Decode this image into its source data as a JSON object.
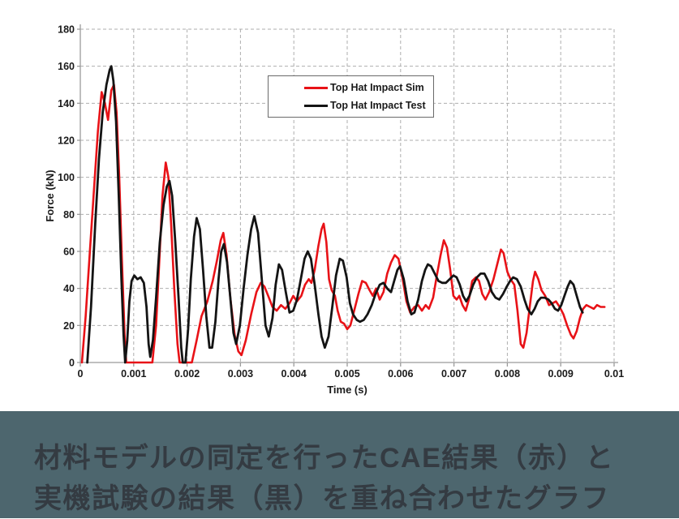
{
  "page": {
    "background": "#ffffff"
  },
  "chart_data": {
    "type": "line",
    "title": "",
    "xlabel": "Time (s)",
    "ylabel": "Force (kN)",
    "xlim": [
      0,
      0.01
    ],
    "ylim": [
      0,
      180
    ],
    "x_ticks": {
      "values": [
        0,
        0.001,
        0.002,
        0.003,
        0.004,
        0.005,
        0.006,
        0.007,
        0.008,
        0.009,
        0.01
      ],
      "labels": [
        "0",
        "0.001",
        "0.002",
        "0.003",
        "0.004",
        "0.005",
        "0.006",
        "0.007",
        "0.008",
        "0.009",
        "0.01"
      ]
    },
    "y_ticks": {
      "values": [
        0,
        20,
        40,
        60,
        80,
        100,
        120,
        140,
        160,
        180
      ],
      "labels": [
        "0",
        "20",
        "40",
        "60",
        "80",
        "100",
        "120",
        "140",
        "160",
        "180"
      ]
    },
    "grid": {
      "style": "dashed",
      "color": "#aeaeae",
      "dash": "4 3"
    },
    "axis_color": "#9b9b9b",
    "tick_label_color": "#1a1a1a",
    "legend": {
      "position": "upper-center",
      "border_color": "#6a6a6a",
      "background": "#ffffff"
    },
    "series": [
      {
        "name": "Top Hat Impact Sim",
        "color": "#e81217",
        "stroke_width": 2.6,
        "points": [
          [
            3e-05,
            0
          ],
          [
            0.0001,
            25
          ],
          [
            0.00018,
            60
          ],
          [
            0.00026,
            95
          ],
          [
            0.00033,
            125
          ],
          [
            0.0004,
            146
          ],
          [
            0.00046,
            140
          ],
          [
            0.00052,
            131
          ],
          [
            0.00058,
            147
          ],
          [
            0.00063,
            150
          ],
          [
            0.00068,
            135
          ],
          [
            0.00073,
            100
          ],
          [
            0.00078,
            55
          ],
          [
            0.00083,
            15
          ],
          [
            0.00086,
            0
          ],
          [
            0.001,
            0
          ],
          [
            0.0012,
            0
          ],
          [
            0.00135,
            0
          ],
          [
            0.00142,
            20
          ],
          [
            0.00148,
            55
          ],
          [
            0.00154,
            90
          ],
          [
            0.0016,
            108
          ],
          [
            0.00165,
            100
          ],
          [
            0.0017,
            75
          ],
          [
            0.00176,
            40
          ],
          [
            0.00182,
            10
          ],
          [
            0.00186,
            0
          ],
          [
            0.002,
            0
          ],
          [
            0.00209,
            0
          ],
          [
            0.00218,
            12
          ],
          [
            0.00227,
            25
          ],
          [
            0.00238,
            33
          ],
          [
            0.00248,
            44
          ],
          [
            0.00256,
            55
          ],
          [
            0.00263,
            66
          ],
          [
            0.00268,
            70
          ],
          [
            0.00274,
            58
          ],
          [
            0.00281,
            35
          ],
          [
            0.00289,
            15
          ],
          [
            0.00296,
            6
          ],
          [
            0.00302,
            4
          ],
          [
            0.0031,
            12
          ],
          [
            0.0032,
            26
          ],
          [
            0.0033,
            38
          ],
          [
            0.00338,
            43
          ],
          [
            0.00345,
            41
          ],
          [
            0.00352,
            36
          ],
          [
            0.0036,
            30
          ],
          [
            0.00368,
            28
          ],
          [
            0.00376,
            31
          ],
          [
            0.00384,
            29
          ],
          [
            0.00392,
            32
          ],
          [
            0.00399,
            36
          ],
          [
            0.00406,
            33
          ],
          [
            0.00414,
            36
          ],
          [
            0.00421,
            42
          ],
          [
            0.00428,
            45
          ],
          [
            0.00433,
            43
          ],
          [
            0.00439,
            50
          ],
          [
            0.00446,
            63
          ],
          [
            0.00452,
            72
          ],
          [
            0.00456,
            75
          ],
          [
            0.00461,
            65
          ],
          [
            0.00466,
            45
          ],
          [
            0.00471,
            39
          ],
          [
            0.00477,
            36
          ],
          [
            0.00482,
            28
          ],
          [
            0.00488,
            22
          ],
          [
            0.00494,
            21
          ],
          [
            0.005,
            18
          ],
          [
            0.00506,
            20
          ],
          [
            0.00513,
            28
          ],
          [
            0.00521,
            37
          ],
          [
            0.00528,
            44
          ],
          [
            0.00535,
            43
          ],
          [
            0.00542,
            39
          ],
          [
            0.00548,
            36
          ],
          [
            0.00554,
            40
          ],
          [
            0.00561,
            34
          ],
          [
            0.00568,
            38
          ],
          [
            0.00575,
            48
          ],
          [
            0.00582,
            54
          ],
          [
            0.00589,
            58
          ],
          [
            0.00596,
            56
          ],
          [
            0.00604,
            45
          ],
          [
            0.00611,
            33
          ],
          [
            0.00618,
            27
          ],
          [
            0.00626,
            30
          ],
          [
            0.00633,
            31
          ],
          [
            0.0064,
            28
          ],
          [
            0.00647,
            31
          ],
          [
            0.00653,
            29
          ],
          [
            0.00661,
            35
          ],
          [
            0.00668,
            47
          ],
          [
            0.00675,
            58
          ],
          [
            0.00681,
            66
          ],
          [
            0.00687,
            62
          ],
          [
            0.00693,
            50
          ],
          [
            0.00699,
            36
          ],
          [
            0.00705,
            34
          ],
          [
            0.0071,
            36
          ],
          [
            0.00716,
            31
          ],
          [
            0.00722,
            28
          ],
          [
            0.00728,
            34
          ],
          [
            0.00734,
            44
          ],
          [
            0.00741,
            46
          ],
          [
            0.00747,
            44
          ],
          [
            0.00753,
            37
          ],
          [
            0.00759,
            34
          ],
          [
            0.00766,
            38
          ],
          [
            0.00774,
            45
          ],
          [
            0.00781,
            53
          ],
          [
            0.00788,
            61
          ],
          [
            0.00793,
            59
          ],
          [
            0.008,
            49
          ],
          [
            0.00806,
            45
          ],
          [
            0.00813,
            42
          ],
          [
            0.00819,
            28
          ],
          [
            0.00825,
            10
          ],
          [
            0.0083,
            8
          ],
          [
            0.00836,
            16
          ],
          [
            0.00842,
            30
          ],
          [
            0.00848,
            44
          ],
          [
            0.00852,
            49
          ],
          [
            0.00858,
            45
          ],
          [
            0.00864,
            39
          ],
          [
            0.00871,
            36
          ],
          [
            0.00878,
            31
          ],
          [
            0.00885,
            32
          ],
          [
            0.00891,
            33
          ],
          [
            0.00898,
            30
          ],
          [
            0.00905,
            26
          ],
          [
            0.00912,
            20
          ],
          [
            0.00919,
            15
          ],
          [
            0.00924,
            13
          ],
          [
            0.0093,
            17
          ],
          [
            0.00936,
            24
          ],
          [
            0.00942,
            29
          ],
          [
            0.00948,
            31
          ],
          [
            0.00955,
            30
          ],
          [
            0.00962,
            29
          ],
          [
            0.00968,
            31
          ],
          [
            0.00975,
            30
          ],
          [
            0.00982,
            30
          ]
        ]
      },
      {
        "name": "Top Hat Impact Test",
        "color": "#141414",
        "stroke_width": 2.8,
        "points": [
          [
            0.00013,
            0
          ],
          [
            0.0002,
            30
          ],
          [
            0.00028,
            75
          ],
          [
            0.00035,
            110
          ],
          [
            0.00042,
            135
          ],
          [
            0.00049,
            150
          ],
          [
            0.00055,
            158
          ],
          [
            0.00058,
            160
          ],
          [
            0.00062,
            152
          ],
          [
            0.00067,
            130
          ],
          [
            0.00072,
            90
          ],
          [
            0.00077,
            45
          ],
          [
            0.00081,
            15
          ],
          [
            0.00084,
            0
          ],
          [
            0.00088,
            12
          ],
          [
            0.00092,
            33
          ],
          [
            0.00096,
            44
          ],
          [
            0.00101,
            47
          ],
          [
            0.00107,
            45
          ],
          [
            0.00113,
            46
          ],
          [
            0.00119,
            43
          ],
          [
            0.00124,
            30
          ],
          [
            0.00128,
            10
          ],
          [
            0.00131,
            3
          ],
          [
            0.00136,
            12
          ],
          [
            0.00142,
            35
          ],
          [
            0.00149,
            65
          ],
          [
            0.00156,
            85
          ],
          [
            0.00162,
            95
          ],
          [
            0.00167,
            98
          ],
          [
            0.00172,
            90
          ],
          [
            0.00178,
            65
          ],
          [
            0.00184,
            35
          ],
          [
            0.00189,
            8
          ],
          [
            0.00192,
            0
          ],
          [
            0.00197,
            0
          ],
          [
            0.00202,
            18
          ],
          [
            0.00207,
            45
          ],
          [
            0.00213,
            68
          ],
          [
            0.00218,
            78
          ],
          [
            0.00224,
            72
          ],
          [
            0.0023,
            50
          ],
          [
            0.00236,
            25
          ],
          [
            0.00242,
            8
          ],
          [
            0.00247,
            8
          ],
          [
            0.00253,
            22
          ],
          [
            0.00259,
            45
          ],
          [
            0.00264,
            60
          ],
          [
            0.00269,
            64
          ],
          [
            0.00275,
            54
          ],
          [
            0.00281,
            35
          ],
          [
            0.00287,
            16
          ],
          [
            0.00292,
            10
          ],
          [
            0.00299,
            20
          ],
          [
            0.00306,
            40
          ],
          [
            0.00313,
            58
          ],
          [
            0.0032,
            72
          ],
          [
            0.00326,
            79
          ],
          [
            0.00333,
            70
          ],
          [
            0.0034,
            45
          ],
          [
            0.00347,
            20
          ],
          [
            0.00353,
            14
          ],
          [
            0.0036,
            24
          ],
          [
            0.00366,
            42
          ],
          [
            0.00372,
            53
          ],
          [
            0.00378,
            50
          ],
          [
            0.00385,
            38
          ],
          [
            0.00392,
            27
          ],
          [
            0.00399,
            28
          ],
          [
            0.00406,
            34
          ],
          [
            0.00413,
            45
          ],
          [
            0.0042,
            56
          ],
          [
            0.00426,
            60
          ],
          [
            0.00432,
            56
          ],
          [
            0.00439,
            42
          ],
          [
            0.00446,
            26
          ],
          [
            0.00452,
            14
          ],
          [
            0.00458,
            8
          ],
          [
            0.00465,
            14
          ],
          [
            0.00472,
            30
          ],
          [
            0.00479,
            47
          ],
          [
            0.00486,
            56
          ],
          [
            0.00492,
            55
          ],
          [
            0.00499,
            46
          ],
          [
            0.00505,
            32
          ],
          [
            0.00511,
            26
          ],
          [
            0.00518,
            23
          ],
          [
            0.00524,
            22
          ],
          [
            0.00531,
            23
          ],
          [
            0.00538,
            26
          ],
          [
            0.00546,
            31
          ],
          [
            0.00553,
            37
          ],
          [
            0.00561,
            42
          ],
          [
            0.00568,
            43
          ],
          [
            0.00575,
            40
          ],
          [
            0.00582,
            38
          ],
          [
            0.00588,
            44
          ],
          [
            0.00594,
            50
          ],
          [
            0.00599,
            52
          ],
          [
            0.00606,
            45
          ],
          [
            0.00613,
            33
          ],
          [
            0.0062,
            26
          ],
          [
            0.00626,
            27
          ],
          [
            0.00633,
            34
          ],
          [
            0.0064,
            44
          ],
          [
            0.00646,
            50
          ],
          [
            0.00651,
            53
          ],
          [
            0.00657,
            52
          ],
          [
            0.00664,
            48
          ],
          [
            0.00671,
            44
          ],
          [
            0.00678,
            43
          ],
          [
            0.00685,
            43
          ],
          [
            0.00692,
            45
          ],
          [
            0.00699,
            47
          ],
          [
            0.00705,
            46
          ],
          [
            0.00711,
            42
          ],
          [
            0.00717,
            36
          ],
          [
            0.00723,
            33
          ],
          [
            0.00729,
            36
          ],
          [
            0.00736,
            42
          ],
          [
            0.00743,
            46
          ],
          [
            0.0075,
            48
          ],
          [
            0.00757,
            48
          ],
          [
            0.00764,
            44
          ],
          [
            0.00771,
            38
          ],
          [
            0.00778,
            35
          ],
          [
            0.00785,
            34
          ],
          [
            0.00792,
            37
          ],
          [
            0.00799,
            41
          ],
          [
            0.00805,
            44
          ],
          [
            0.00811,
            46
          ],
          [
            0.00818,
            45
          ],
          [
            0.00825,
            41
          ],
          [
            0.00832,
            34
          ],
          [
            0.00838,
            29
          ],
          [
            0.00845,
            26
          ],
          [
            0.00851,
            29
          ],
          [
            0.00857,
            33
          ],
          [
            0.00863,
            35
          ],
          [
            0.0087,
            35
          ],
          [
            0.00877,
            34
          ],
          [
            0.00883,
            32
          ],
          [
            0.00889,
            29
          ],
          [
            0.00895,
            28
          ],
          [
            0.00901,
            31
          ],
          [
            0.00907,
            36
          ],
          [
            0.00913,
            41
          ],
          [
            0.00918,
            44
          ],
          [
            0.00924,
            42
          ],
          [
            0.0093,
            36
          ],
          [
            0.00936,
            30
          ],
          [
            0.00941,
            27
          ]
        ]
      }
    ]
  },
  "caption": {
    "line1": "材料モデルの同定を行ったCAE結果（赤）と",
    "line2": "実機試験の結果（黒）を重ね合わせたグラフ",
    "background": "#4d666e",
    "color": "#343b42"
  }
}
